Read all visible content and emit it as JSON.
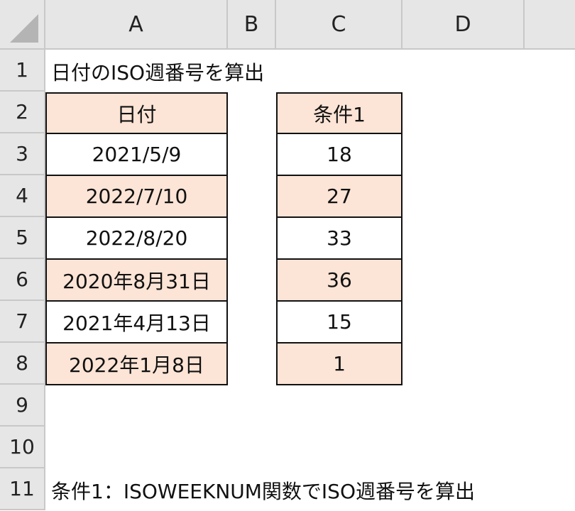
{
  "columns": [
    "A",
    "B",
    "C",
    "D"
  ],
  "rows": [
    "1",
    "2",
    "3",
    "4",
    "5",
    "6",
    "7",
    "8",
    "9",
    "10",
    "11"
  ],
  "title": "日付のISO週番号を算出",
  "table_a": {
    "header": "日付",
    "values": [
      "2021/5/9",
      "2022/7/10",
      "2022/8/20",
      "2020年8月31日",
      "2021年4月13日",
      "2022年1月8日"
    ]
  },
  "table_c": {
    "header": "条件1",
    "values": [
      "18",
      "27",
      "33",
      "36",
      "15",
      "1"
    ]
  },
  "note": "条件1：ISOWEEKNUM関数でISO週番号を算出",
  "colors": {
    "header_fill": "#fce4d6",
    "alt_fill": "#fce4d6",
    "grid_header": "#e6e6e6"
  }
}
